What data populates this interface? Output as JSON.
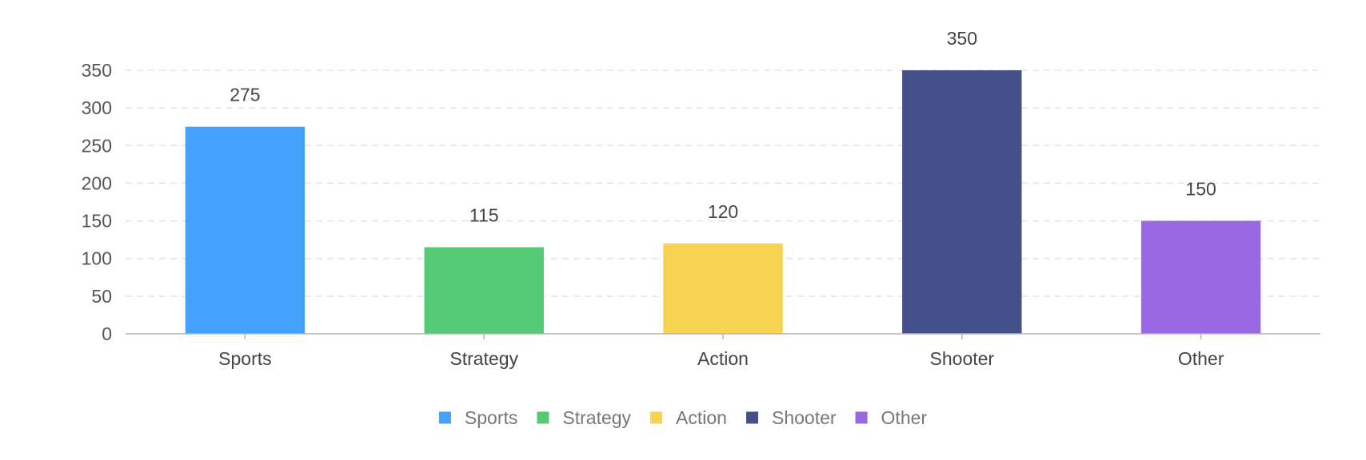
{
  "chart_data": {
    "type": "bar",
    "title": "",
    "xlabel": "",
    "ylabel": "",
    "categories": [
      "Sports",
      "Strategy",
      "Action",
      "Shooter",
      "Other"
    ],
    "values": [
      275,
      115,
      120,
      350,
      150
    ],
    "colors": [
      "#44a2fc",
      "#55ca74",
      "#f8d34f",
      "#44508a",
      "#9968e2"
    ],
    "ylim": [
      0,
      350
    ],
    "yticks": [
      0,
      50,
      100,
      150,
      200,
      250,
      300,
      350
    ],
    "grid": true,
    "legend": {
      "position": "bottom-center",
      "entries": [
        "Sports",
        "Strategy",
        "Action",
        "Shooter",
        "Other"
      ]
    }
  }
}
